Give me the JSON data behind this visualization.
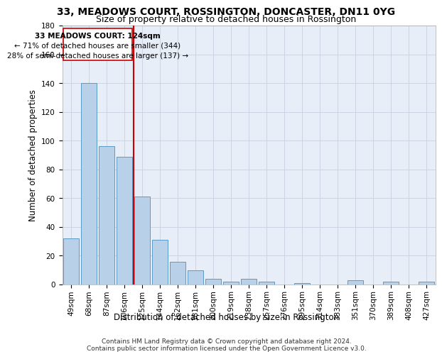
{
  "title": "33, MEADOWS COURT, ROSSINGTON, DONCASTER, DN11 0YG",
  "subtitle": "Size of property relative to detached houses in Rossington",
  "xlabel": "Distribution of detached houses by size in Rossington",
  "ylabel": "Number of detached properties",
  "bar_color": "#b8d0e8",
  "bar_edge_color": "#5a9ac8",
  "background_color": "#e8eef8",
  "categories": [
    "49sqm",
    "68sqm",
    "87sqm",
    "106sqm",
    "125sqm",
    "144sqm",
    "162sqm",
    "181sqm",
    "200sqm",
    "219sqm",
    "238sqm",
    "257sqm",
    "276sqm",
    "295sqm",
    "314sqm",
    "333sqm",
    "351sqm",
    "370sqm",
    "389sqm",
    "408sqm",
    "427sqm"
  ],
  "values": [
    32,
    140,
    96,
    89,
    61,
    31,
    16,
    10,
    4,
    2,
    4,
    2,
    0,
    1,
    0,
    0,
    3,
    0,
    2,
    0,
    2
  ],
  "ylim": [
    0,
    180
  ],
  "yticks": [
    0,
    20,
    40,
    60,
    80,
    100,
    120,
    140,
    160,
    180
  ],
  "property_label": "33 MEADOWS COURT: 124sqm",
  "annotation_line1": "← 71% of detached houses are smaller (344)",
  "annotation_line2": "28% of semi-detached houses are larger (137) →",
  "vline_bar_index": 4,
  "footer_line1": "Contains HM Land Registry data © Crown copyright and database right 2024.",
  "footer_line2": "Contains public sector information licensed under the Open Government Licence v3.0.",
  "grid_color": "#c8d0e0",
  "vline_color": "#cc0000",
  "annotation_box_color": "#cc0000",
  "title_fontsize": 10,
  "subtitle_fontsize": 9,
  "axis_label_fontsize": 8.5,
  "tick_fontsize": 7.5,
  "annotation_fontsize": 7.5,
  "footer_fontsize": 6.5
}
